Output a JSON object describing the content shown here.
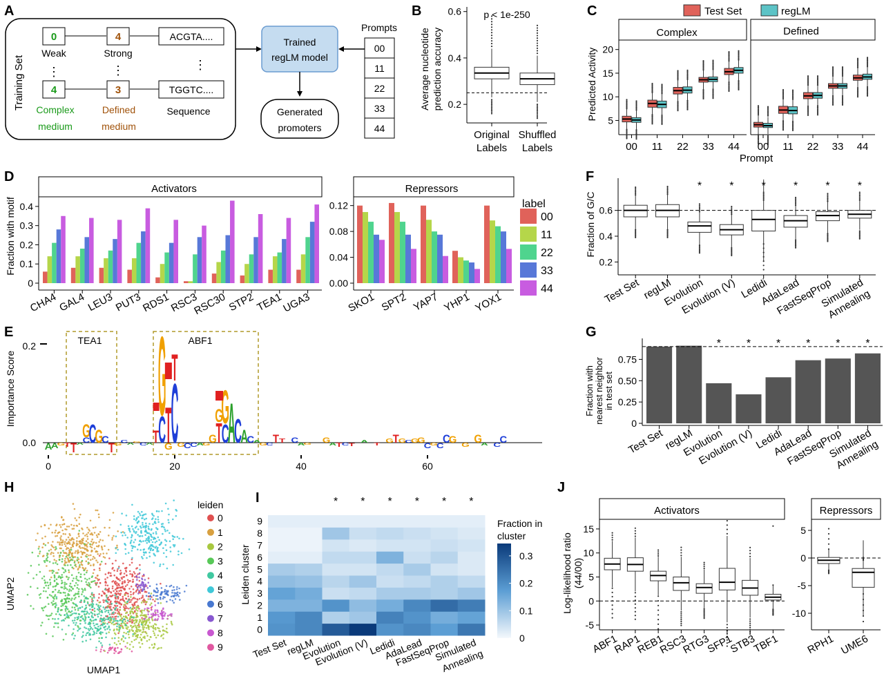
{
  "colors": {
    "test_set": "#e0625a",
    "reglm": "#5cc3c6",
    "green": "#1a9a1a",
    "brown": "#a0520a",
    "label_00": "#e0625a",
    "label_11": "#b5d64a",
    "label_22": "#4fd48e",
    "label_33": "#5878d8",
    "label_44": "#c85ce0",
    "bar_dark": "#555555",
    "dashed": "#000000",
    "reglm_box": "#c5dcf0",
    "reglm_box_stroke": "#6a9bd0",
    "heat_low": "#f4f8fc",
    "heat_high": "#0a3a7a",
    "motif_box": "#b09a2a",
    "A": "#2ca02c",
    "C": "#1f3fd8",
    "G": "#f0a000",
    "T": "#e02020"
  },
  "panels": {
    "A": "A",
    "B": "B",
    "C": "C",
    "D": "D",
    "E": "E",
    "F": "F",
    "G": "G",
    "H": "H",
    "I": "I",
    "J": "J"
  },
  "panelA": {
    "training_set": "Training Set",
    "n1": "0",
    "n2": "4",
    "n3": "4",
    "n4": "3",
    "weak": "Weak",
    "strong": "Strong",
    "seq1": "ACGTA....",
    "seq2": "TGGTC....",
    "complex1": "Complex",
    "complex2": "medium",
    "defined1": "Defined",
    "defined2": "medium",
    "sequence": "Sequence",
    "model1": "Trained",
    "model2": "regLM model",
    "gen1": "Generated",
    "gen2": "promoters",
    "prompts_title": "Prompts",
    "prompts": [
      "00",
      "11",
      "22",
      "33",
      "44"
    ],
    "dots": "⋮"
  },
  "panelB": {
    "ylabel1": "Average nucleotide",
    "ylabel2": "prediction accuracy",
    "pval": "p < 1e-250",
    "yticks": [
      "0.6",
      "0.4",
      "0.2"
    ],
    "xlabels": [
      [
        "Original",
        "Labels"
      ],
      [
        "Shuffled",
        "Labels"
      ]
    ]
  },
  "panelC": {
    "legend": [
      "Test Set",
      "regLM"
    ],
    "facets": [
      "Complex",
      "Defined"
    ],
    "ylabel": "Predicted Activity",
    "xlabel": "Prompt",
    "yticks": [
      "20",
      "15",
      "10",
      "5"
    ],
    "xticks": [
      "00",
      "11",
      "22",
      "33",
      "44"
    ]
  },
  "panelD": {
    "activators_title": "Activators",
    "repressors_title": "Repressors",
    "ylabel": "Fraction with motif",
    "act_yticks": [
      "0.4",
      "0.3",
      "0.2",
      "0.1",
      "0"
    ],
    "rep_yticks": [
      "0.12",
      "0.08",
      "0.04",
      "0.00"
    ],
    "legend_title": "label",
    "legend": [
      "00",
      "11",
      "22",
      "33",
      "44"
    ]
  },
  "panelE": {
    "ylabel": "Importance Score",
    "yticks": [
      "0.2",
      "0.0"
    ],
    "xticks": [
      "0",
      "20",
      "40",
      "60"
    ],
    "motif1": "TEA1",
    "motif2": "ABF1"
  },
  "panelF": {
    "ylabel": "Fraction of G/C",
    "yticks": [
      "0.6",
      "0.4",
      "0.2"
    ],
    "star": "*"
  },
  "panelG": {
    "ylabel1": "Fraction with",
    "ylabel2": "nearest neighbor",
    "ylabel3": "in test set",
    "yticks": [
      "0.75",
      "0.50",
      "0.25",
      "0"
    ]
  },
  "methods": [
    [
      "Test Set"
    ],
    [
      "regLM"
    ],
    [
      "Evolution"
    ],
    [
      "Evolution (V)"
    ],
    [
      "Ledidi"
    ],
    [
      "AdaLead"
    ],
    [
      "FastSeqProp"
    ],
    [
      "Simulated",
      "Annealing"
    ]
  ],
  "panelH": {
    "xlabel": "UMAP1",
    "ylabel": "UMAP2",
    "legend_title": "leiden",
    "legend": [
      "0",
      "1",
      "2",
      "3",
      "4",
      "5",
      "6",
      "7",
      "8",
      "9"
    ],
    "cluster_colors": [
      "#e05050",
      "#d8a040",
      "#a8c840",
      "#58c858",
      "#40c8a0",
      "#40c8d8",
      "#4878d0",
      "#8858d0",
      "#c858d0",
      "#e058a0"
    ]
  },
  "panelI": {
    "ylabel": "Leiden cluster",
    "yticks": [
      "9",
      "8",
      "7",
      "6",
      "5",
      "4",
      "3",
      "2",
      "1",
      "0"
    ],
    "legend_title1": "Fraction in",
    "legend_title2": "cluster",
    "legend_ticks": [
      "0.3",
      "0.2",
      "0.1",
      "0"
    ],
    "xlabels": [
      [
        "Test Set"
      ],
      [
        "regLM"
      ],
      [
        "Evolution"
      ],
      [
        "Evolution (V)"
      ],
      [
        "Ledidi"
      ],
      [
        "AdaLead"
      ],
      [
        "FastSeqProp"
      ],
      [
        "Simulated",
        "Annealing"
      ]
    ]
  },
  "panelJ": {
    "activators_title": "Activators",
    "repressors_title": "Repressors",
    "ylabel1": "Log-likelihood ratio",
    "ylabel2": "(44/00)",
    "yticks": [
      "15",
      "10",
      "5",
      "0",
      "-5"
    ],
    "rep_yticks": [
      "5",
      "0",
      "-5",
      "-10"
    ],
    "act_x": [
      "ABF1",
      "RAP1",
      "REB1",
      "RSC3",
      "RTG3",
      "SFP1",
      "STB3",
      "TBF1"
    ],
    "rep_x": [
      "RPH1",
      "UME6"
    ]
  },
  "chart_data": [
    {
      "panel": "B",
      "type": "box",
      "ylabel": "Average nucleotide prediction accuracy",
      "categories": [
        "Original Labels",
        "Shuffled Labels"
      ],
      "boxes": [
        {
          "q1": 0.31,
          "median": 0.335,
          "q3": 0.36,
          "low": 0.23,
          "high": 0.44
        },
        {
          "q1": 0.285,
          "median": 0.31,
          "q3": 0.335,
          "low": 0.21,
          "high": 0.41
        }
      ],
      "reference_line": 0.25,
      "ylim": [
        0.12,
        0.62
      ],
      "annotation": "p < 1e-250"
    },
    {
      "panel": "C",
      "type": "box",
      "ylabel": "Predicted Activity",
      "xlabel": "Prompt",
      "categories": [
        "00",
        "11",
        "22",
        "33",
        "44"
      ],
      "ylim": [
        2,
        22
      ],
      "facets": [
        {
          "name": "Complex",
          "series": [
            {
              "name": "Test Set",
              "boxes": [
                {
                  "q1": 4.7,
                  "median": 5.3,
                  "q3": 5.9
                },
                {
                  "q1": 7.8,
                  "median": 8.6,
                  "q3": 9.3
                },
                {
                  "q1": 10.6,
                  "median": 11.3,
                  "q3": 12.0
                },
                {
                  "q1": 13.1,
                  "median": 13.6,
                  "q3": 14.1
                },
                {
                  "q1": 14.7,
                  "median": 15.3,
                  "q3": 16.0
                }
              ]
            },
            {
              "name": "regLM",
              "boxes": [
                {
                  "q1": 4.6,
                  "median": 5.1,
                  "q3": 5.6
                },
                {
                  "q1": 7.7,
                  "median": 8.4,
                  "q3": 9.1
                },
                {
                  "q1": 10.8,
                  "median": 11.4,
                  "q3": 12.1
                },
                {
                  "q1": 13.2,
                  "median": 13.7,
                  "q3": 14.2
                },
                {
                  "q1": 15.0,
                  "median": 15.6,
                  "q3": 16.2
                }
              ]
            }
          ]
        },
        {
          "name": "Defined",
          "series": [
            {
              "name": "Test Set",
              "boxes": [
                {
                  "q1": 3.6,
                  "median": 4.1,
                  "q3": 4.6
                },
                {
                  "q1": 6.5,
                  "median": 7.2,
                  "q3": 8.0
                },
                {
                  "q1": 9.6,
                  "median": 10.2,
                  "q3": 10.9
                },
                {
                  "q1": 11.8,
                  "median": 12.3,
                  "q3": 12.8
                },
                {
                  "q1": 13.5,
                  "median": 14.0,
                  "q3": 14.6
                }
              ]
            },
            {
              "name": "regLM",
              "boxes": [
                {
                  "q1": 3.5,
                  "median": 3.9,
                  "q3": 4.4
                },
                {
                  "q1": 6.4,
                  "median": 7.1,
                  "q3": 7.9
                },
                {
                  "q1": 9.7,
                  "median": 10.3,
                  "q3": 10.9
                },
                {
                  "q1": 11.8,
                  "median": 12.3,
                  "q3": 12.8
                },
                {
                  "q1": 13.7,
                  "median": 14.2,
                  "q3": 14.8
                }
              ]
            }
          ]
        }
      ]
    },
    {
      "panel": "D-Activators",
      "type": "bar",
      "ylabel": "Fraction with motif",
      "categories": [
        "CHA4",
        "GAL4",
        "LEU3",
        "PUT3",
        "RDS1",
        "RSC3",
        "RSC30",
        "STP2",
        "TEA1",
        "UGA3"
      ],
      "ylim": [
        0,
        0.45
      ],
      "series": [
        {
          "name": "00",
          "values": [
            0.06,
            0.08,
            0.08,
            0.07,
            0.03,
            0.01,
            0.05,
            0.04,
            0.07,
            0.07
          ]
        },
        {
          "name": "11",
          "values": [
            0.14,
            0.14,
            0.13,
            0.13,
            0.1,
            0.01,
            0.11,
            0.1,
            0.14,
            0.15
          ]
        },
        {
          "name": "22",
          "values": [
            0.21,
            0.18,
            0.17,
            0.21,
            0.16,
            0.15,
            0.17,
            0.15,
            0.16,
            0.24
          ]
        },
        {
          "name": "33",
          "values": [
            0.28,
            0.24,
            0.23,
            0.27,
            0.21,
            0.24,
            0.25,
            0.24,
            0.23,
            0.32
          ]
        },
        {
          "name": "44",
          "values": [
            0.35,
            0.34,
            0.33,
            0.39,
            0.33,
            0.3,
            0.43,
            0.36,
            0.34,
            0.41
          ]
        }
      ]
    },
    {
      "panel": "D-Repressors",
      "type": "bar",
      "categories": [
        "SKO1",
        "SPT2",
        "YAP7",
        "YHP1",
        "YOX1"
      ],
      "ylim": [
        0,
        0.13
      ],
      "series": [
        {
          "name": "00",
          "values": [
            0.12,
            0.124,
            0.12,
            0.05,
            0.12
          ]
        },
        {
          "name": "11",
          "values": [
            0.11,
            0.11,
            0.098,
            0.04,
            0.097
          ]
        },
        {
          "name": "22",
          "values": [
            0.095,
            0.095,
            0.08,
            0.035,
            0.088
          ]
        },
        {
          "name": "33",
          "values": [
            0.075,
            0.075,
            0.075,
            0.032,
            0.08
          ]
        },
        {
          "name": "44",
          "values": [
            0.067,
            0.053,
            0.042,
            0.022,
            0.053
          ]
        }
      ]
    },
    {
      "panel": "F",
      "type": "box",
      "ylabel": "Fraction of G/C",
      "categories": [
        "Test Set",
        "regLM",
        "Evolution",
        "Evolution (V)",
        "Ledidi",
        "AdaLead",
        "FastSeqProp",
        "Simulated Annealing"
      ],
      "ylim": [
        0.1,
        0.85
      ],
      "reference_line": 0.6,
      "boxes": [
        {
          "q1": 0.55,
          "median": 0.6,
          "q3": 0.64
        },
        {
          "q1": 0.55,
          "median": 0.6,
          "q3": 0.645
        },
        {
          "q1": 0.43,
          "median": 0.48,
          "q3": 0.51
        },
        {
          "q1": 0.41,
          "median": 0.45,
          "q3": 0.49
        },
        {
          "q1": 0.44,
          "median": 0.53,
          "q3": 0.6
        },
        {
          "q1": 0.47,
          "median": 0.52,
          "q3": 0.56
        },
        {
          "q1": 0.52,
          "median": 0.56,
          "q3": 0.59
        },
        {
          "q1": 0.54,
          "median": 0.57,
          "q3": 0.6
        }
      ],
      "significant": [
        2,
        3,
        4,
        5,
        6,
        7
      ]
    },
    {
      "panel": "G",
      "type": "bar",
      "ylabel": "Fraction with nearest neighbor in test set",
      "categories": [
        "Test Set",
        "regLM",
        "Evolution",
        "Evolution (V)",
        "Ledidi",
        "AdaLead",
        "FastSeqProp",
        "Simulated Annealing"
      ],
      "ylim": [
        0,
        1
      ],
      "values": [
        0.9,
        0.91,
        0.47,
        0.34,
        0.54,
        0.74,
        0.76,
        0.82
      ],
      "reference_line": 0.9,
      "significant": [
        2,
        3,
        4,
        5,
        6,
        7
      ]
    },
    {
      "panel": "I",
      "type": "heatmap",
      "ylabel": "Leiden cluster",
      "columns": [
        "Test Set",
        "regLM",
        "Evolution",
        "Evolution (V)",
        "Ledidi",
        "AdaLead",
        "FastSeqProp",
        "Simulated Annealing"
      ],
      "rows": [
        "0",
        "1",
        "2",
        "3",
        "4",
        "5",
        "6",
        "7",
        "8",
        "9"
      ],
      "values": [
        [
          0.2,
          0.22,
          0.3,
          0.36,
          0.2,
          0.22,
          0.18,
          0.25
        ],
        [
          0.19,
          0.22,
          0.08,
          0.1,
          0.23,
          0.2,
          0.15,
          0.17
        ],
        [
          0.14,
          0.14,
          0.2,
          0.12,
          0.15,
          0.22,
          0.27,
          0.24
        ],
        [
          0.17,
          0.15,
          0.05,
          0.06,
          0.09,
          0.09,
          0.08,
          0.1
        ],
        [
          0.12,
          0.11,
          0.07,
          0.1,
          0.05,
          0.06,
          0.08,
          0.06
        ],
        [
          0.09,
          0.08,
          0.04,
          0.04,
          0.06,
          0.09,
          0.04,
          0.03
        ],
        [
          0.02,
          0.02,
          0.06,
          0.06,
          0.14,
          0.05,
          0.07,
          0.03
        ],
        [
          0.01,
          0.01,
          0.04,
          0.03,
          0.04,
          0.04,
          0.05,
          0.04
        ],
        [
          0.01,
          0.01,
          0.1,
          0.05,
          0.06,
          0.05,
          0.04,
          0.03
        ],
        [
          0.02,
          0.02,
          0.02,
          0.02,
          0.02,
          0.02,
          0.02,
          0.02
        ]
      ],
      "significant": [
        2,
        3,
        4,
        5,
        6,
        7
      ]
    },
    {
      "panel": "J-Activators",
      "type": "box",
      "ylabel": "Log-likelihood ratio (44/00)",
      "categories": [
        "ABF1",
        "RAP1",
        "REB1",
        "RSC3",
        "RTG3",
        "SFP1",
        "STB3",
        "TBF1"
      ],
      "ylim": [
        -6,
        17
      ],
      "reference_line": 0,
      "boxes": [
        {
          "q1": 6.5,
          "median": 7.7,
          "q3": 8.9
        },
        {
          "q1": 6.2,
          "median": 7.6,
          "q3": 9.0
        },
        {
          "q1": 4.2,
          "median": 5.3,
          "q3": 6.2
        },
        {
          "q1": 2.2,
          "median": 3.8,
          "q3": 5.0
        },
        {
          "q1": 1.6,
          "median": 2.8,
          "q3": 3.6
        },
        {
          "q1": 2.3,
          "median": 3.9,
          "q3": 6.8
        },
        {
          "q1": 1.2,
          "median": 2.7,
          "q3": 4.3
        },
        {
          "q1": 0.2,
          "median": 0.8,
          "q3": 1.4
        }
      ]
    },
    {
      "panel": "J-Repressors",
      "type": "box",
      "categories": [
        "RPH1",
        "UME6"
      ],
      "ylim": [
        -13,
        7
      ],
      "reference_line": 0,
      "boxes": [
        {
          "q1": -1.0,
          "median": -0.4,
          "q3": 0.1
        },
        {
          "q1": -5.3,
          "median": -2.6,
          "q3": -1.9
        }
      ]
    }
  ]
}
